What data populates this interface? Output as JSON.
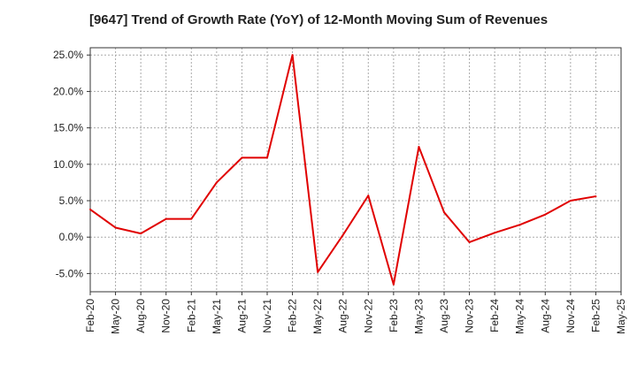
{
  "chart_data": {
    "type": "line",
    "title": "[9647]  Trend of Growth Rate (YoY) of 12-Month Moving Sum of Revenues",
    "xlabel": "",
    "ylabel": "",
    "x": [
      "Feb-20",
      "May-20",
      "Aug-20",
      "Nov-20",
      "Feb-21",
      "May-21",
      "Aug-21",
      "Nov-21",
      "Feb-22",
      "May-22",
      "Aug-22",
      "Nov-22",
      "Feb-23",
      "May-23",
      "Aug-23",
      "Nov-23",
      "Feb-24",
      "May-24",
      "Aug-24",
      "Nov-24",
      "Feb-25",
      "May-25"
    ],
    "x_tick_labels": [
      "Feb-20",
      "May-20",
      "Aug-20",
      "Nov-20",
      "Feb-21",
      "May-21",
      "Aug-21",
      "Nov-21",
      "Feb-22",
      "May-22",
      "Aug-22",
      "Nov-22",
      "Feb-23",
      "May-23",
      "Aug-23",
      "Nov-23",
      "Feb-24",
      "May-24",
      "Aug-24",
      "Nov-24",
      "Feb-25",
      "May-25"
    ],
    "y_ticks": [
      25,
      20,
      15,
      10,
      5,
      0,
      -5
    ],
    "y_tick_labels": [
      "25.0%",
      "20.0%",
      "15.0%",
      "10.0%",
      "5.0%",
      "0.0%",
      "-5.0%"
    ],
    "ylim": [
      -7.5,
      26
    ],
    "series": [
      {
        "color": "#e00000",
        "values": [
          3.8,
          1.3,
          0.5,
          2.5,
          2.5,
          7.5,
          10.9,
          10.9,
          25.0,
          -4.8,
          0.3,
          5.7,
          -6.5,
          12.4,
          3.4,
          -0.7,
          0.6,
          1.7,
          3.1,
          5.0,
          5.6,
          null
        ]
      }
    ],
    "grid": true,
    "grid_color": "#aaaaaa",
    "legend": "none"
  }
}
